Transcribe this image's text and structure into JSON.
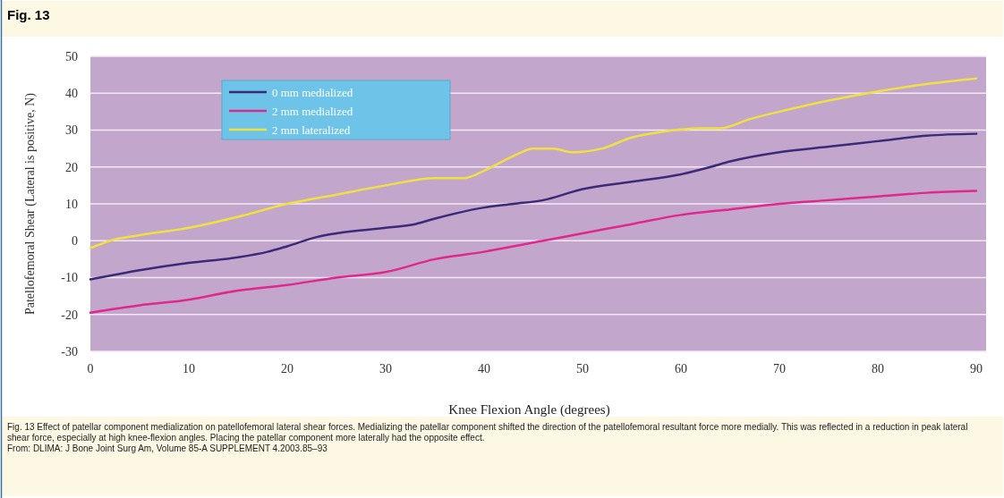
{
  "chart_data": {
    "type": "line",
    "title": "Fig. 13",
    "xlabel": "Knee Flexion Angle (degrees)",
    "ylabel": "Patellofemoral Shear (Lateral is positive, N)",
    "xlim": [
      0,
      91
    ],
    "xticks": [
      0,
      10,
      20,
      30,
      40,
      50,
      60,
      70,
      80,
      90
    ],
    "ylim": [
      -30,
      50
    ],
    "yticks": [
      -30,
      -20,
      -10,
      0,
      10,
      20,
      30,
      40,
      50
    ],
    "grid": "y",
    "legend": "top left",
    "marker": "none",
    "line_style": "solid",
    "series": [
      {
        "name": "0 mm medialized",
        "color": "#3a2a78",
        "x": [
          0,
          5,
          10,
          15,
          18,
          20,
          23,
          25,
          30,
          33,
          35,
          40,
          43,
          46,
          50,
          55,
          60,
          63,
          65,
          70,
          75,
          80,
          85,
          90
        ],
        "values": [
          -10.5,
          -8,
          -6,
          -4.5,
          -3,
          -1.5,
          1,
          2,
          3.5,
          4.5,
          6,
          9,
          10,
          11,
          14,
          16,
          18,
          20,
          21.5,
          24,
          25.5,
          27,
          28.5,
          29
        ]
      },
      {
        "name": "2 mm medialized",
        "color": "#e0288c",
        "x": [
          0,
          5,
          10,
          15,
          20,
          25,
          30,
          35,
          40,
          45,
          50,
          55,
          60,
          65,
          70,
          75,
          80,
          85,
          90
        ],
        "values": [
          -19.5,
          -17.5,
          -16,
          -13.5,
          -12,
          -10,
          -8.5,
          -5,
          -3,
          -0.5,
          2,
          4.5,
          7,
          8.5,
          10,
          11,
          12,
          13,
          13.5
        ]
      },
      {
        "name": "2 mm lateralized",
        "color": "#f0e040",
        "x": [
          0,
          2,
          5,
          10,
          15,
          20,
          25,
          30,
          35,
          38,
          40,
          43,
          45,
          47,
          49,
          52,
          55,
          58,
          62,
          64,
          67,
          70,
          75,
          80,
          85,
          90
        ],
        "values": [
          -2,
          0,
          1.5,
          3.5,
          6.5,
          10,
          12.5,
          15,
          17,
          17,
          19,
          23,
          25,
          25,
          24,
          25,
          28,
          29.5,
          30.5,
          30.5,
          33,
          35,
          38,
          40.5,
          42.5,
          44
        ]
      }
    ],
    "annotations": [
      "Fig. 13 Effect of patellar component medialization on patellofemoral lateral shear forces. Medializing the patellar component shifted the direction of the patellofemoral resultant force more medially. This was reflected in a reduction in peak lateral shear force, especially at high knee-flexion angles. Placing the patellar component more laterally had the opposite effect.",
      "From: DLIMA: J Bone Joint Surg Am, Volume 85-A SUPPLEMENT 4.2003.85–93"
    ]
  }
}
